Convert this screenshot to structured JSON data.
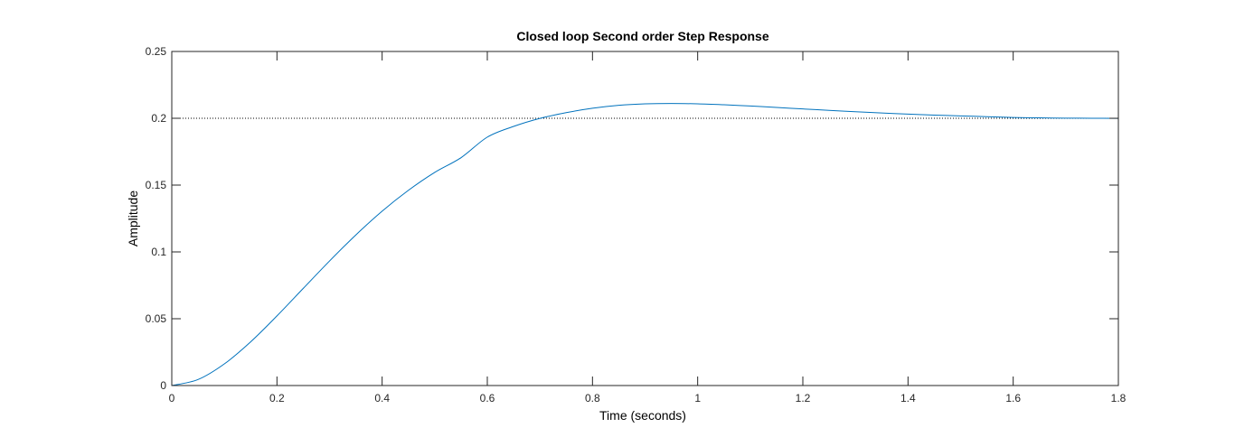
{
  "chart_data": {
    "type": "line",
    "title": "Closed loop Second order Step Response",
    "xlabel": "Time (seconds)",
    "ylabel": "Amplitude",
    "xlim": [
      0,
      1.8
    ],
    "ylim": [
      0,
      0.25
    ],
    "xticks": [
      0,
      0.2,
      0.4,
      0.6,
      0.8,
      1,
      1.2,
      1.4,
      1.6,
      1.8
    ],
    "yticks": [
      0,
      0.05,
      0.1,
      0.15,
      0.2,
      0.25
    ],
    "xtick_labels": [
      "0",
      "0.2",
      "0.4",
      "0.6",
      "0.8",
      "1",
      "1.2",
      "1.4",
      "1.6",
      "1.8"
    ],
    "ytick_labels": [
      "0",
      "0.05",
      "0.1",
      "0.15",
      "0.2",
      "0.25"
    ],
    "grid": false,
    "reference_line": {
      "y": 0.2,
      "style": "dotted",
      "color": "#000000"
    },
    "series": [
      {
        "color": "#0072BD",
        "x": [
          0,
          0.05,
          0.1,
          0.15,
          0.2,
          0.25,
          0.3,
          0.35,
          0.4,
          0.45,
          0.5,
          0.55,
          0.6,
          0.65,
          0.7,
          0.75,
          0.8,
          0.85,
          0.9,
          0.95,
          1.0,
          1.05,
          1.1,
          1.15,
          1.2,
          1.25,
          1.3,
          1.35,
          1.4,
          1.45,
          1.5,
          1.55,
          1.6,
          1.65,
          1.7,
          1.75,
          1.8
        ],
        "y": [
          0,
          0.0045,
          0.0162,
          0.0327,
          0.0521,
          0.0727,
          0.0932,
          0.1127,
          0.1305,
          0.1461,
          0.1595,
          0.1705,
          0.1859,
          0.1939,
          0.1999,
          0.2042,
          0.2075,
          0.2097,
          0.2108,
          0.2111,
          0.2108,
          0.2101,
          0.2092,
          0.2081,
          0.207,
          0.2059,
          0.2049,
          0.204,
          0.2031,
          0.2024,
          0.2018,
          0.2012,
          0.2006,
          0.2003,
          0.2001,
          0.2,
          0.1999
        ]
      }
    ]
  }
}
